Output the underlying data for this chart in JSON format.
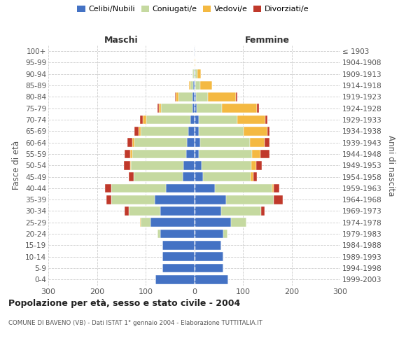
{
  "age_groups": [
    "0-4",
    "5-9",
    "10-14",
    "15-19",
    "20-24",
    "25-29",
    "30-34",
    "35-39",
    "40-44",
    "45-49",
    "50-54",
    "55-59",
    "60-64",
    "65-69",
    "70-74",
    "75-79",
    "80-84",
    "85-89",
    "90-94",
    "95-99",
    "100+"
  ],
  "birth_years": [
    "1999-2003",
    "1994-1998",
    "1989-1993",
    "1984-1988",
    "1979-1983",
    "1974-1978",
    "1969-1973",
    "1964-1968",
    "1959-1963",
    "1954-1958",
    "1949-1953",
    "1944-1948",
    "1939-1943",
    "1934-1938",
    "1929-1933",
    "1924-1928",
    "1919-1923",
    "1914-1918",
    "1909-1913",
    "1904-1908",
    "≤ 1903"
  ],
  "colors": {
    "celibi": "#4472c4",
    "coniugati": "#c5d9a0",
    "vedovi": "#f4b942",
    "divorziati": "#c0392b"
  },
  "legend_labels": [
    "Celibi/Nubili",
    "Coniugati/e",
    "Vedovi/e",
    "Divorziati/e"
  ],
  "maschi_celibi": [
    80,
    65,
    65,
    65,
    70,
    90,
    70,
    82,
    58,
    24,
    22,
    16,
    15,
    12,
    8,
    3,
    4,
    2,
    1,
    0,
    1
  ],
  "maschi_coniugati": [
    0,
    0,
    0,
    0,
    5,
    20,
    65,
    88,
    112,
    100,
    108,
    112,
    108,
    98,
    90,
    65,
    28,
    6,
    2,
    0,
    0
  ],
  "maschi_vedovi": [
    0,
    0,
    0,
    0,
    0,
    1,
    0,
    0,
    1,
    1,
    2,
    3,
    4,
    5,
    8,
    5,
    6,
    3,
    1,
    0,
    0
  ],
  "maschi_divorziati": [
    0,
    0,
    0,
    0,
    0,
    0,
    8,
    10,
    12,
    10,
    12,
    12,
    10,
    8,
    5,
    2,
    1,
    0,
    0,
    0,
    0
  ],
  "femmine_nubili": [
    70,
    60,
    60,
    56,
    60,
    75,
    55,
    65,
    42,
    18,
    15,
    10,
    12,
    10,
    10,
    5,
    3,
    2,
    1,
    0,
    1
  ],
  "femmine_coniugate": [
    0,
    0,
    0,
    0,
    8,
    32,
    82,
    98,
    118,
    98,
    102,
    108,
    102,
    92,
    78,
    52,
    25,
    10,
    5,
    1,
    0
  ],
  "femmine_vedove": [
    0,
    0,
    0,
    0,
    0,
    0,
    0,
    1,
    3,
    5,
    10,
    18,
    30,
    48,
    58,
    72,
    58,
    25,
    8,
    1,
    0
  ],
  "femmine_divorziate": [
    0,
    0,
    0,
    0,
    0,
    0,
    8,
    18,
    12,
    8,
    12,
    18,
    10,
    5,
    5,
    4,
    2,
    0,
    0,
    0,
    0
  ],
  "xlim": 300,
  "title": "Popolazione per età, sesso e stato civile - 2004",
  "subtitle": "COMUNE DI BAVENO (VB) - Dati ISTAT 1° gennaio 2004 - Elaborazione TUTTITALIA.IT",
  "ylabel_left": "Fasce di età",
  "ylabel_right": "Anni di nascita",
  "xlabel_maschi": "Maschi",
  "xlabel_femmine": "Femmine"
}
